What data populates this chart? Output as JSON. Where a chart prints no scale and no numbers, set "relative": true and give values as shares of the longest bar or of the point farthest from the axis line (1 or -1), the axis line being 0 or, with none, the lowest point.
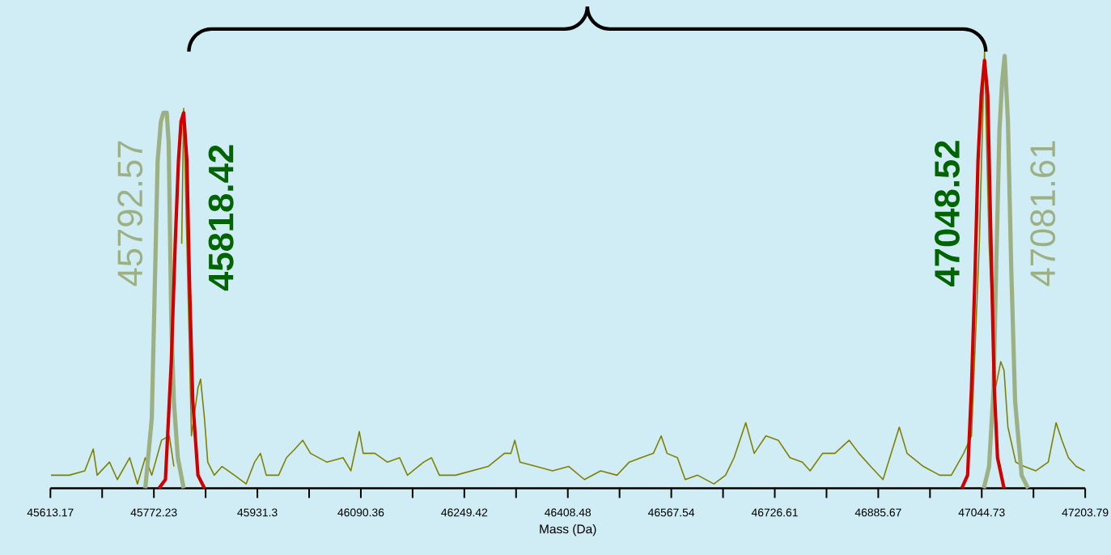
{
  "chart_data": {
    "type": "line",
    "relative": true,
    "xlabel": "Mass (Da)",
    "xlim": [
      45613.17,
      47203.79
    ],
    "xticks": [
      45613.17,
      {
        "value": 45692.7,
        "label": null
      },
      45772.23,
      {
        "value": 45851.76,
        "label": null
      },
      45931.3,
      {
        "value": 46010.83,
        "label": null
      },
      46090.36,
      {
        "value": 46169.89,
        "label": null
      },
      46249.42,
      {
        "value": 46328.95,
        "label": null
      },
      46408.48,
      {
        "value": 46488.01,
        "label": null
      },
      46567.54,
      {
        "value": 46647.08,
        "label": null
      },
      46726.61,
      {
        "value": 46806.14,
        "label": null
      },
      46885.67,
      {
        "value": 46965.2,
        "label": null
      },
      47044.73,
      {
        "value": 47124.26,
        "label": null
      },
      47203.79
    ],
    "series": [
      {
        "color": "#808000",
        "x": [
          45614,
          45642,
          45666,
          45679,
          45685,
          45704,
          45716,
          45735,
          45747,
          45759,
          45769,
          45784,
          45796,
          45803,
          45809,
          45815,
          45818,
          45823,
          45830,
          45840,
          45844,
          45850,
          45855,
          45865,
          45877,
          45896,
          45914,
          45927,
          45936,
          45945,
          45964,
          45976,
          45989,
          46001,
          46013,
          46038,
          46063,
          46075,
          46088,
          46094,
          46112,
          46131,
          46150,
          46162,
          46187,
          46199,
          46211,
          46236,
          46261,
          46286,
          46311,
          46321,
          46327,
          46335,
          46360,
          46385,
          46410,
          46434,
          46459,
          46484,
          46503,
          46521,
          46540,
          46552,
          46561,
          46577,
          46589,
          46608,
          46633,
          46651,
          46664,
          46682,
          46695,
          46713,
          46732,
          46750,
          46769,
          46781,
          46800,
          46819,
          46841,
          46856,
          46874,
          46893,
          46918,
          46930,
          46955,
          46980,
          46998,
          47017,
          47029,
          47041,
          47049,
          47056,
          47066,
          47074,
          47079,
          47085,
          47097,
          47110,
          47128,
          47147,
          47159,
          47168,
          47178,
          47190,
          47203
        ],
        "values": [
          0.03,
          0.03,
          0.04,
          0.09,
          0.03,
          0.06,
          0.02,
          0.07,
          0.01,
          0.07,
          0.03,
          0.11,
          0.12,
          0.05,
          null,
          0.56,
          0.87,
          0.56,
          0.12,
          0.23,
          0.25,
          0.16,
          0.06,
          0.03,
          0.05,
          0.03,
          0.01,
          0.06,
          0.08,
          0.03,
          0.03,
          0.07,
          0.09,
          0.11,
          0.08,
          0.06,
          0.07,
          0.04,
          0.13,
          0.08,
          0.08,
          0.06,
          0.07,
          0.03,
          0.06,
          0.07,
          0.03,
          0.03,
          0.04,
          0.05,
          0.08,
          0.08,
          0.11,
          0.06,
          0.05,
          0.04,
          0.05,
          0.02,
          0.04,
          0.03,
          0.06,
          0.07,
          0.08,
          0.12,
          0.08,
          0.07,
          0.02,
          0.03,
          0.01,
          0.03,
          0.07,
          0.15,
          0.08,
          0.12,
          0.11,
          0.07,
          0.06,
          0.04,
          0.08,
          0.08,
          0.11,
          0.08,
          0.05,
          0.02,
          0.14,
          0.08,
          0.05,
          0.03,
          0.03,
          0.08,
          0.12,
          0.56,
          1.0,
          0.56,
          0.23,
          0.29,
          0.27,
          0.14,
          0.06,
          0.05,
          0.04,
          0.06,
          0.15,
          0.11,
          0.07,
          0.05,
          0.04
        ]
      },
      {
        "color": "#9db083",
        "x": [
          45759,
          45769,
          45773,
          45778,
          45783,
          45787,
          45792,
          45795,
          45799,
          45803,
          45809,
          45818,
          46400,
          47048,
          47056,
          47063,
          47067,
          47072,
          47076,
          47080,
          47085,
          47090,
          47096,
          47106,
          47116
        ],
        "values": [
          0,
          0.16,
          0.42,
          0.75,
          0.84,
          0.86,
          0.86,
          0.79,
          0.38,
          0.2,
          0.07,
          0,
          null,
          0,
          0.05,
          0.23,
          0.51,
          0.82,
          0.93,
          0.99,
          0.84,
          0.51,
          0.2,
          0.03,
          0
        ]
      },
      {
        "color": "#d00000",
        "x": [
          45780,
          45790,
          45799,
          45805,
          45810,
          45814,
          45818,
          45823,
          45827,
          45832,
          45840,
          45850,
          46400,
          47014,
          47023,
          47029,
          47034,
          47039,
          47044,
          47049,
          47054,
          47059,
          47064,
          47069,
          47079
        ],
        "values": [
          0,
          0.02,
          0.29,
          0.56,
          0.75,
          0.84,
          0.86,
          0.75,
          0.47,
          0.2,
          0.03,
          0,
          null,
          0,
          0.03,
          0.23,
          0.47,
          0.75,
          0.9,
          0.98,
          0.9,
          0.56,
          0.23,
          0.07,
          0
        ]
      }
    ],
    "annotations": [
      {
        "text": "45792.57",
        "x": 45792.57,
        "y": 0.63
      },
      {
        "text": "45818.42",
        "x": 45818.42,
        "y": 0.62
      },
      {
        "text": "47048.52",
        "x": 47048.52,
        "y": 0.63
      },
      {
        "text": "47081.61",
        "x": 47081.61,
        "y": 0.63
      }
    ]
  }
}
